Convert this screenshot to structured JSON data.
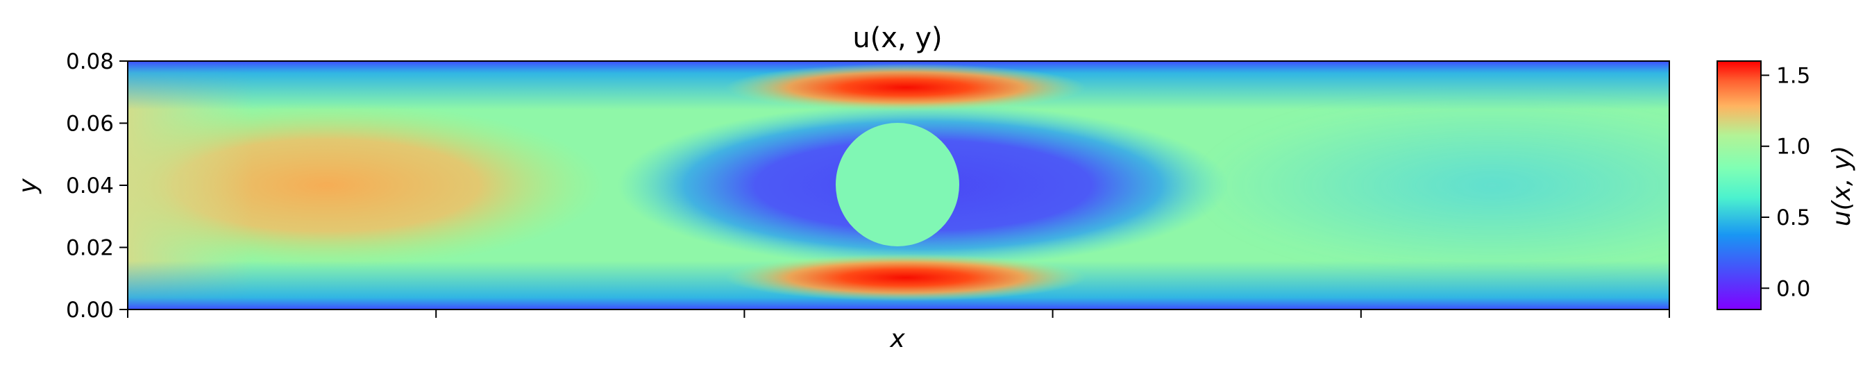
{
  "chart_data": {
    "type": "heatmap",
    "title": "u(x, y)",
    "xlabel": "x",
    "ylabel": "y",
    "colorbar_label": "u(x, y)",
    "colormap": "rainbow",
    "ylim": [
      0.0,
      0.08
    ],
    "clim": [
      -0.15,
      1.6
    ],
    "yticks": [
      "0.00",
      "0.02",
      "0.04",
      "0.06",
      "0.08"
    ],
    "xticks_count": 6,
    "colorbar_ticks": [
      "0.0",
      "0.5",
      "1.0",
      "1.5"
    ],
    "colorbar_tick_values": [
      0.0,
      0.5,
      1.0,
      1.5
    ],
    "obstacle": {
      "shape": "circle",
      "cx_fraction": 0.5,
      "cy": 0.04,
      "r": 0.02
    },
    "features": {
      "inlet_core_u": 1.25,
      "jet_max_u": 1.6,
      "wake_u": 0.0,
      "outlet_core_u": 0.7
    }
  }
}
